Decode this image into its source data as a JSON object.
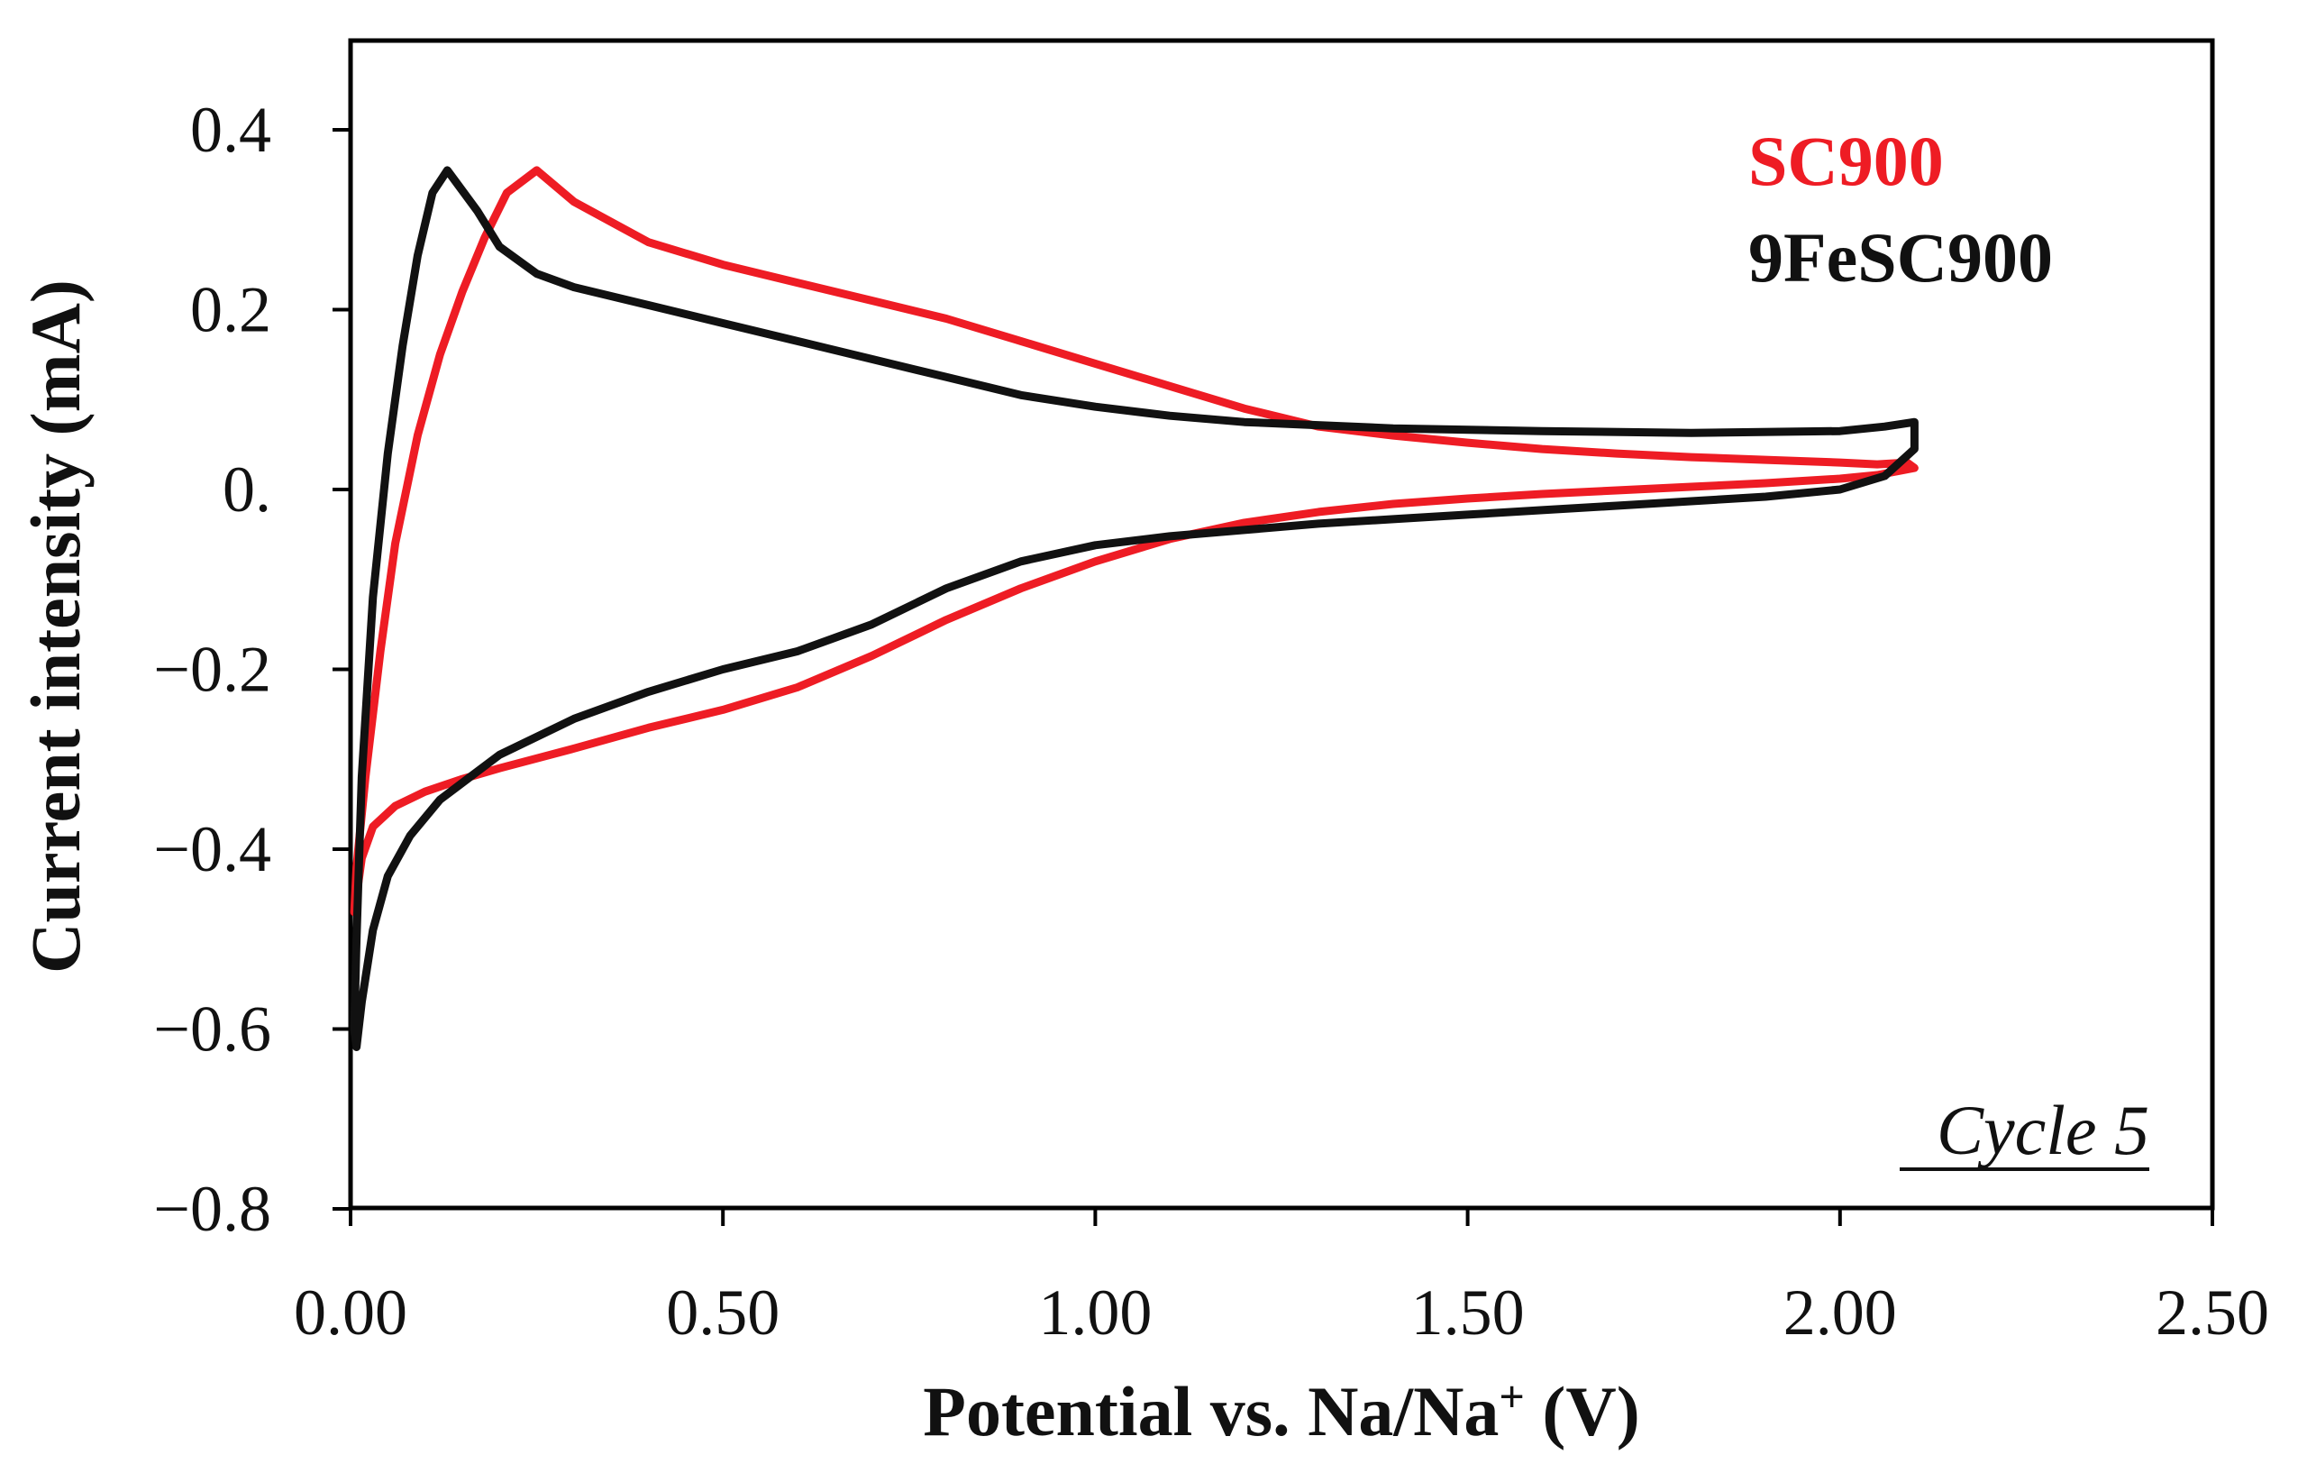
{
  "chart_data": {
    "type": "line",
    "title": "",
    "xlabel": "Potential vs. Na/Na",
    "xlabel_sup": "+",
    "xlabel_unit": " (V)",
    "ylabel": "Current intensity (mA)",
    "xlim": [
      0,
      2.5
    ],
    "ylim": [
      -0.8,
      0.5
    ],
    "x_ticks": [
      0,
      0.5,
      1.0,
      1.5,
      2.0,
      2.5
    ],
    "x_tick_labels": [
      "0.00",
      "0.50",
      "1.00",
      "1.50",
      "2.00",
      "2.50"
    ],
    "y_ticks": [
      -0.8,
      -0.6,
      -0.4,
      -0.2,
      0,
      0.2,
      0.4
    ],
    "y_tick_labels": [
      "−0.8",
      "−0.6",
      "−0.4",
      "−0.2",
      "0.",
      "0.2",
      "0.4"
    ],
    "grid": false,
    "legend_position": "top-right",
    "annotation": "Cycle 5",
    "series": [
      {
        "name": "SC900",
        "color": "#ee1c24",
        "points": [
          [
            0.005,
            -0.47
          ],
          [
            0.015,
            -0.41
          ],
          [
            0.03,
            -0.375
          ],
          [
            0.06,
            -0.352
          ],
          [
            0.1,
            -0.336
          ],
          [
            0.15,
            -0.322
          ],
          [
            0.2,
            -0.31
          ],
          [
            0.3,
            -0.288
          ],
          [
            0.4,
            -0.265
          ],
          [
            0.5,
            -0.245
          ],
          [
            0.6,
            -0.22
          ],
          [
            0.7,
            -0.185
          ],
          [
            0.8,
            -0.145
          ],
          [
            0.9,
            -0.11
          ],
          [
            1.0,
            -0.08
          ],
          [
            1.1,
            -0.055
          ],
          [
            1.2,
            -0.037
          ],
          [
            1.3,
            -0.025
          ],
          [
            1.4,
            -0.016
          ],
          [
            1.5,
            -0.01
          ],
          [
            1.6,
            -0.005
          ],
          [
            1.7,
            -0.001
          ],
          [
            1.8,
            0.003
          ],
          [
            1.9,
            0.007
          ],
          [
            2.0,
            0.012
          ],
          [
            2.05,
            0.016
          ],
          [
            2.1,
            0.024
          ],
          [
            2.09,
            0.03
          ],
          [
            2.05,
            0.028
          ],
          [
            2.0,
            0.03
          ],
          [
            1.9,
            0.033
          ],
          [
            1.8,
            0.036
          ],
          [
            1.7,
            0.04
          ],
          [
            1.6,
            0.045
          ],
          [
            1.5,
            0.052
          ],
          [
            1.4,
            0.06
          ],
          [
            1.3,
            0.07
          ],
          [
            1.2,
            0.09
          ],
          [
            1.1,
            0.115
          ],
          [
            1.0,
            0.14
          ],
          [
            0.9,
            0.165
          ],
          [
            0.8,
            0.19
          ],
          [
            0.7,
            0.21
          ],
          [
            0.6,
            0.23
          ],
          [
            0.5,
            0.25
          ],
          [
            0.4,
            0.275
          ],
          [
            0.3,
            0.32
          ],
          [
            0.25,
            0.355
          ],
          [
            0.21,
            0.33
          ],
          [
            0.18,
            0.28
          ],
          [
            0.15,
            0.22
          ],
          [
            0.12,
            0.15
          ],
          [
            0.09,
            0.06
          ],
          [
            0.06,
            -0.06
          ],
          [
            0.04,
            -0.18
          ],
          [
            0.02,
            -0.32
          ],
          [
            0.008,
            -0.42
          ],
          [
            0.005,
            -0.47
          ]
        ]
      },
      {
        "name": "9FeSC900",
        "color": "#111111",
        "points": [
          [
            0.008,
            -0.62
          ],
          [
            0.015,
            -0.57
          ],
          [
            0.03,
            -0.49
          ],
          [
            0.05,
            -0.43
          ],
          [
            0.08,
            -0.385
          ],
          [
            0.12,
            -0.345
          ],
          [
            0.2,
            -0.295
          ],
          [
            0.3,
            -0.255
          ],
          [
            0.4,
            -0.225
          ],
          [
            0.5,
            -0.2
          ],
          [
            0.6,
            -0.18
          ],
          [
            0.7,
            -0.15
          ],
          [
            0.8,
            -0.11
          ],
          [
            0.9,
            -0.08
          ],
          [
            1.0,
            -0.062
          ],
          [
            1.1,
            -0.052
          ],
          [
            1.2,
            -0.045
          ],
          [
            1.3,
            -0.038
          ],
          [
            1.4,
            -0.033
          ],
          [
            1.5,
            -0.028
          ],
          [
            1.6,
            -0.023
          ],
          [
            1.7,
            -0.018
          ],
          [
            1.8,
            -0.013
          ],
          [
            1.9,
            -0.008
          ],
          [
            2.0,
            0.0
          ],
          [
            2.06,
            0.015
          ],
          [
            2.1,
            0.045
          ],
          [
            2.1,
            0.075
          ],
          [
            2.06,
            0.07
          ],
          [
            2.0,
            0.065
          ],
          [
            1.8,
            0.063
          ],
          [
            1.6,
            0.065
          ],
          [
            1.4,
            0.068
          ],
          [
            1.2,
            0.075
          ],
          [
            1.1,
            0.082
          ],
          [
            1.0,
            0.092
          ],
          [
            0.9,
            0.105
          ],
          [
            0.8,
            0.125
          ],
          [
            0.7,
            0.145
          ],
          [
            0.6,
            0.165
          ],
          [
            0.5,
            0.185
          ],
          [
            0.4,
            0.205
          ],
          [
            0.3,
            0.225
          ],
          [
            0.25,
            0.24
          ],
          [
            0.2,
            0.27
          ],
          [
            0.17,
            0.31
          ],
          [
            0.13,
            0.355
          ],
          [
            0.11,
            0.33
          ],
          [
            0.09,
            0.26
          ],
          [
            0.07,
            0.16
          ],
          [
            0.05,
            0.04
          ],
          [
            0.03,
            -0.12
          ],
          [
            0.015,
            -0.32
          ],
          [
            0.008,
            -0.5
          ],
          [
            0.005,
            -0.6
          ],
          [
            0.008,
            -0.62
          ]
        ]
      }
    ]
  }
}
